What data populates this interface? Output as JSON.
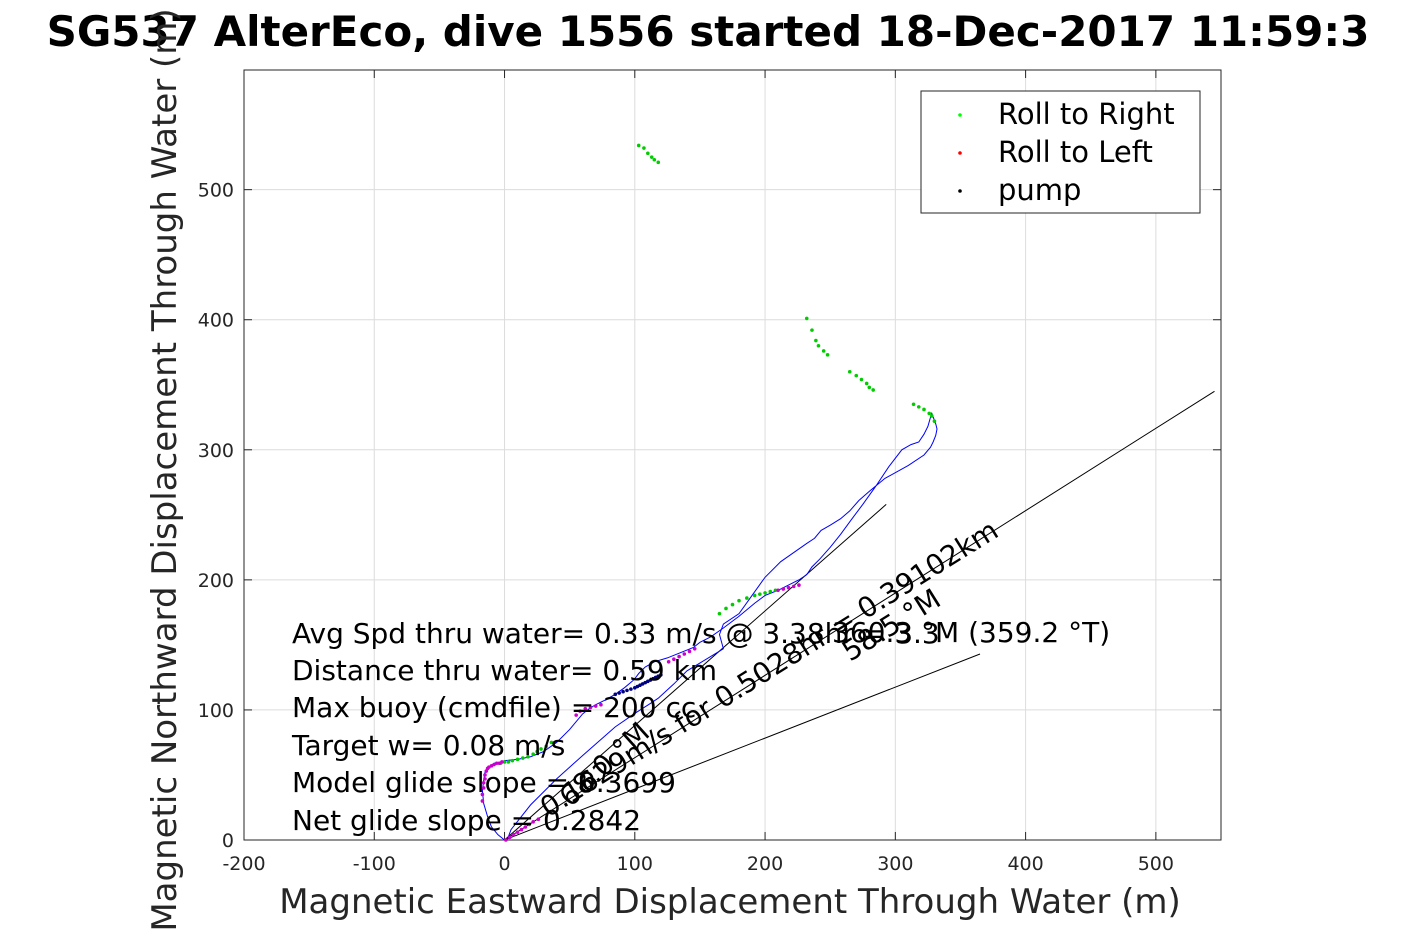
{
  "chart_data": {
    "type": "scatter",
    "title": "SG537 AlterEco, dive 1556 started 18-Dec-2017 11:59:3",
    "xlabel": "Magnetic Eastward Displacement Through Water (m)",
    "ylabel": "Magnetic Northward Displacement Through Water (m)",
    "xlim": [
      -200,
      550
    ],
    "ylim": [
      0,
      592
    ],
    "xticks": [
      -200,
      -100,
      0,
      100,
      200,
      300,
      400,
      500
    ],
    "yticks": [
      0,
      100,
      200,
      300,
      400,
      500
    ],
    "xtick_labels": [
      "-200",
      "-100",
      "0",
      "100",
      "200",
      "300",
      "400",
      "500"
    ],
    "ytick_labels": [
      "0",
      "100",
      "200",
      "300",
      "400",
      "500"
    ],
    "grid": true,
    "legend_position": "top-right",
    "colors": {
      "track": "#0000ff",
      "roll_right": "#00cc00",
      "roll_left": "#ff0000",
      "pump": "#000000",
      "magenta": "#cc00cc",
      "annotation_line": "#000000"
    },
    "legend": [
      {
        "label": "Roll to Right",
        "color": "#00ff00"
      },
      {
        "label": "Roll to Left",
        "color": "#ff0000"
      },
      {
        "label": "pump",
        "color": "#000000"
      }
    ],
    "track": {
      "x": [
        0,
        -5,
        -10,
        -13,
        -16,
        -17,
        -16,
        -15,
        -12,
        -8,
        -3,
        0,
        10,
        20,
        30,
        40,
        50,
        60,
        65,
        70,
        78,
        85,
        92,
        98,
        100,
        103,
        108,
        115,
        125,
        135,
        145,
        150,
        158,
        168,
        180,
        192,
        200,
        210,
        218,
        226,
        232,
        236,
        242,
        250,
        258,
        266,
        275,
        285,
        295,
        305,
        312,
        318,
        322,
        325,
        327,
        328,
        331,
        332,
        331,
        329,
        327,
        322,
        310,
        292,
        280,
        272,
        265,
        258,
        250,
        243,
        238,
        232,
        212,
        200,
        190,
        180,
        168,
        165,
        168,
        140,
        130,
        118,
        112,
        101,
        85,
        60,
        40,
        20,
        5,
        2
      ],
      "y": [
        0,
        4,
        10,
        18,
        28,
        38,
        46,
        52,
        56,
        59,
        60,
        61,
        62,
        64,
        68,
        75,
        85,
        97,
        101,
        104,
        108,
        112,
        117,
        122,
        124,
        128,
        133,
        137,
        140,
        144,
        148,
        152,
        156,
        163,
        172,
        182,
        188,
        192,
        196,
        200,
        204,
        210,
        216,
        225,
        235,
        246,
        258,
        272,
        287,
        300,
        304,
        306,
        312,
        318,
        325,
        328,
        320,
        316,
        311,
        306,
        302,
        296,
        288,
        278,
        268,
        261,
        253,
        247,
        242,
        238,
        232,
        228,
        214,
        202,
        188,
        174,
        166,
        158,
        147,
        130,
        120,
        109,
        105,
        98,
        87,
        65,
        47,
        27,
        8,
        0
      ]
    },
    "roll_right_points": {
      "x": [
        -3,
        0,
        3,
        6,
        10,
        14,
        18,
        22,
        25,
        28,
        32,
        36,
        165,
        170,
        175,
        180,
        186,
        192,
        196,
        200,
        204,
        208,
        232,
        236,
        239,
        241,
        245,
        248,
        265,
        270,
        274,
        278,
        280,
        283,
        314,
        318,
        322,
        326,
        328,
        330,
        103,
        107,
        110,
        113,
        115,
        118
      ],
      "y": [
        59,
        60,
        60,
        61,
        62,
        63,
        64,
        66,
        68,
        70,
        72,
        75,
        174,
        178,
        181,
        184,
        186,
        188,
        189,
        190,
        191,
        192,
        401,
        392,
        384,
        380,
        376,
        373,
        360,
        357,
        354,
        351,
        348,
        346,
        335,
        333,
        331,
        328,
        326,
        322,
        534,
        532,
        528,
        525,
        523,
        521
      ]
    },
    "roll_left_points": {
      "x": [
        -17,
        -17,
        -16,
        -16,
        -15,
        -15,
        -14,
        -13,
        -12,
        -10,
        -8,
        -6,
        -4,
        -2,
        1,
        4,
        7,
        10,
        13,
        16,
        19,
        22,
        26,
        55,
        58,
        62,
        66,
        70,
        74,
        126,
        130,
        134,
        138,
        142,
        146,
        210,
        214,
        218,
        222,
        226
      ],
      "y": [
        30,
        35,
        40,
        44,
        47,
        50,
        53,
        55,
        56,
        57,
        58,
        59,
        59,
        60,
        0,
        2,
        4,
        6,
        8,
        10,
        12,
        14,
        16,
        96,
        99,
        101,
        102,
        103,
        104,
        137,
        139,
        141,
        143,
        145,
        147,
        192,
        193,
        194,
        195,
        196
      ]
    },
    "pump_points": {
      "x": [
        85,
        88,
        91,
        94,
        97,
        100,
        102,
        104,
        106,
        108,
        110,
        112,
        114,
        116,
        118,
        120
      ],
      "y": [
        112,
        113,
        114,
        115,
        116,
        117,
        118,
        119,
        120,
        121,
        122,
        123,
        124,
        125,
        126,
        127
      ]
    },
    "annotation_lines": [
      {
        "x": [
          0,
          293
        ],
        "y": [
          0,
          258
        ]
      },
      {
        "x": [
          0,
          365
        ],
        "y": [
          0,
          143
        ]
      },
      {
        "x": [
          0,
          545
        ],
        "y": [
          0,
          345
        ]
      }
    ],
    "annotations": [
      "Avg Spd thru water=  0.33 m/s @ 3.38hr = 3.3",
      "Distance thru water=  0.59 km",
      "Max buoy (cmdfile) = 200 cc",
      "Target w= 0.08 m/s",
      "Model glide slope = 0.3699",
      "Net glide slope = 0.2842"
    ],
    "heading_annotation": "360.3 °M (359.2 °T)",
    "rotated_annotations": [
      "0.1629m/s for 0.5028hr = 0.39102km",
      "68.0 °M",
      "58.5 °M"
    ]
  }
}
